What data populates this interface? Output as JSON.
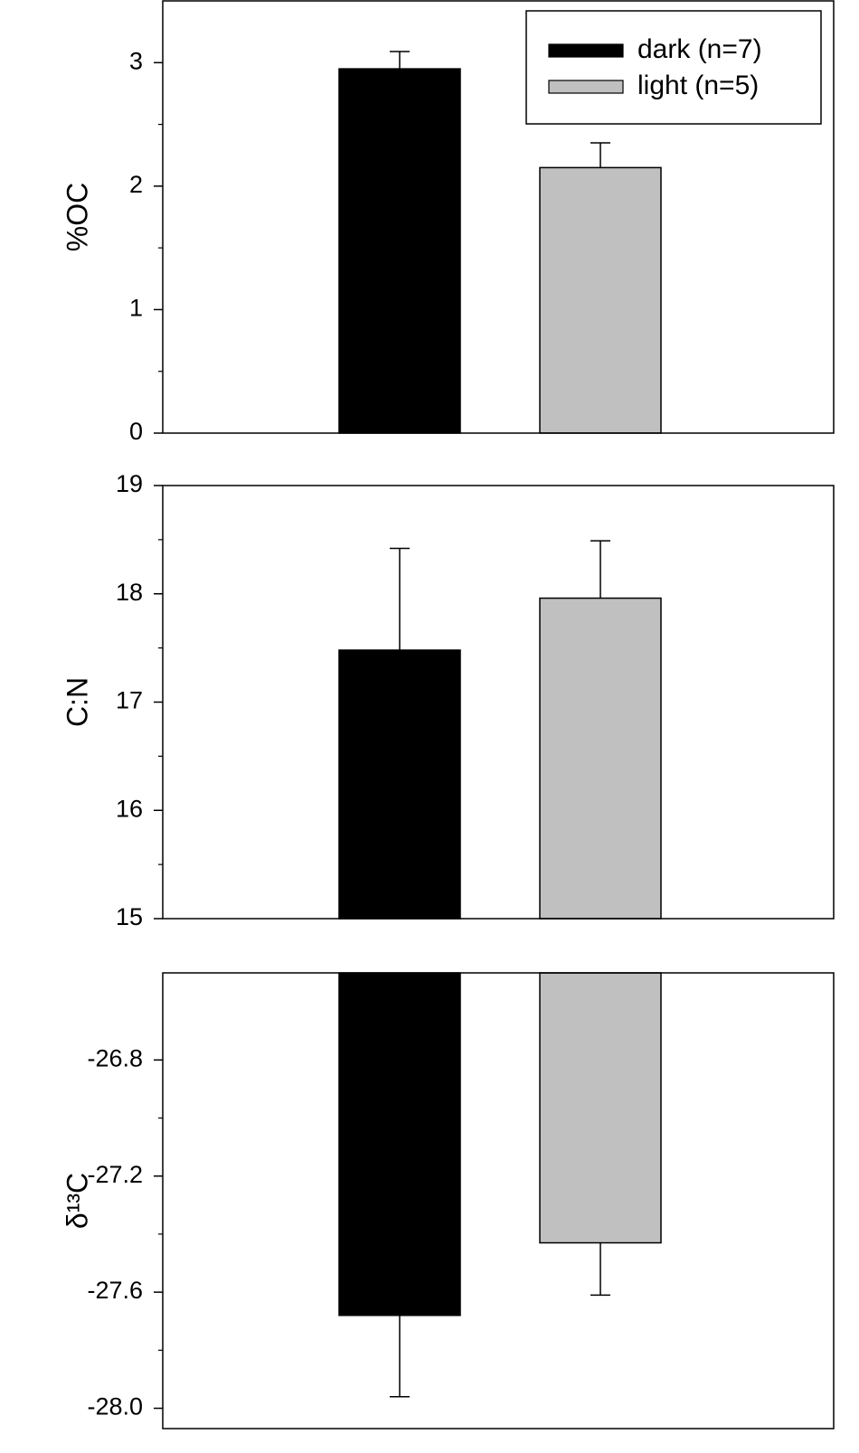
{
  "chart_data": [
    {
      "type": "bar",
      "ylabel": "%OC",
      "categories": [
        null
      ],
      "ylim": [
        0,
        3.5
      ],
      "yticks": [
        0,
        1,
        2,
        3
      ],
      "yminorticks": [
        0.5,
        1.5,
        2.5
      ],
      "legend": "upper right",
      "series": [
        {
          "name": "dark (n=7)",
          "color": "#000000",
          "values": [
            2.95
          ],
          "errors": [
            0.14
          ]
        },
        {
          "name": "light (n=5)",
          "color": "#c0c0c0",
          "values": [
            2.15
          ],
          "errors": [
            0.2
          ]
        }
      ]
    },
    {
      "type": "bar",
      "ylabel": "C:N",
      "categories": [
        null
      ],
      "ylim": [
        15,
        19
      ],
      "yticks": [
        15,
        16,
        17,
        18,
        19
      ],
      "yminorticks": [
        15.5,
        16.5,
        17.5,
        18.5
      ],
      "series": [
        {
          "color": "#000000",
          "values": [
            17.48
          ],
          "errors": [
            0.94
          ]
        },
        {
          "color": "#c0c0c0",
          "values": [
            17.96
          ],
          "errors": [
            0.53
          ]
        }
      ]
    },
    {
      "type": "bar",
      "ylabel": "δ¹³C",
      "categories": [
        null
      ],
      "ylim": [
        -28.07,
        -26.5
      ],
      "yticks": [
        -26.8,
        -27.2,
        -27.6,
        {
          "value": -28,
          "label": "-28.0"
        }
      ],
      "yminorticks": [
        -27.0,
        -27.4,
        -27.8
      ],
      "series": [
        {
          "color": "#000000",
          "values": [
            -27.68
          ],
          "errors": [
            0.28
          ]
        },
        {
          "color": "#c0c0c0",
          "values": [
            -27.43
          ],
          "errors": [
            0.18
          ]
        }
      ]
    }
  ]
}
